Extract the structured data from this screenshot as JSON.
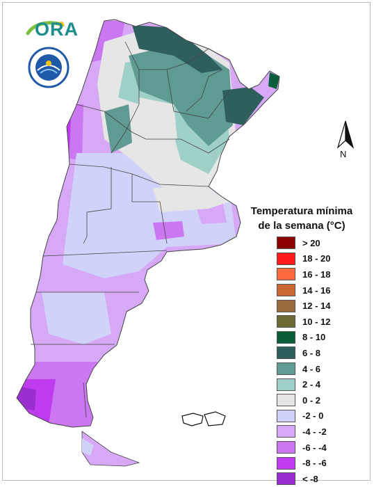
{
  "logo": {
    "text": "ORA"
  },
  "seal": {
    "icon": "smn-seal-icon"
  },
  "compass": {
    "label": "N"
  },
  "legend": {
    "title_line1": "Temperatura mínima",
    "title_line2": "de la semana (°C)",
    "items": [
      {
        "label": "> 20",
        "color": "#8b0000"
      },
      {
        "label": "18 - 20",
        "color": "#ff1a1a"
      },
      {
        "label": "16 - 18",
        "color": "#ff6b3d"
      },
      {
        "label": "14 - 16",
        "color": "#cc6633"
      },
      {
        "label": "12 - 14",
        "color": "#9a6b3a"
      },
      {
        "label": "10 - 12",
        "color": "#6b6b33"
      },
      {
        "label": "8 - 10",
        "color": "#0b5e3a"
      },
      {
        "label": "6 - 8",
        "color": "#2f5f5c"
      },
      {
        "label": "4 - 6",
        "color": "#5f9a93"
      },
      {
        "label": "2 - 4",
        "color": "#9fd0c8"
      },
      {
        "label": "0 - 2",
        "color": "#e6e6e6"
      },
      {
        "label": "-2 - 0",
        "color": "#d0d2fa"
      },
      {
        "label": "-4 - -2",
        "color": "#d6a8f5"
      },
      {
        "label": "-6 - -4",
        "color": "#cc77f2"
      },
      {
        "label": "-8 - -6",
        "color": "#bf3bf0"
      },
      {
        "label": "< -8",
        "color": "#9a2ed0"
      }
    ]
  }
}
